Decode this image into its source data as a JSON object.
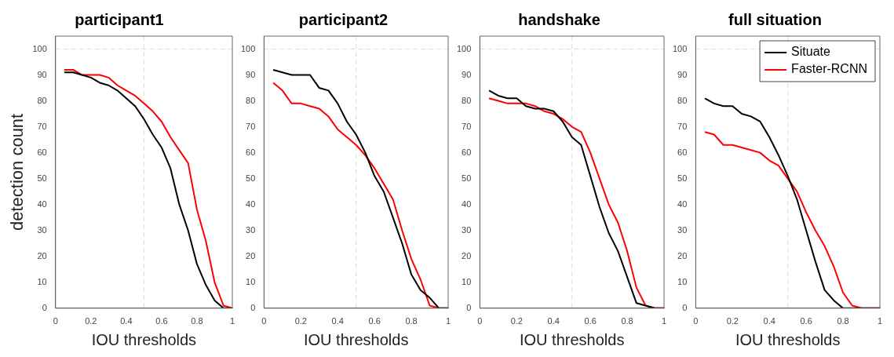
{
  "chart_data": [
    {
      "type": "line",
      "title": "participant1",
      "xlabel": "IOU thresholds",
      "ylabel": "detection count",
      "x": [
        0.05,
        0.1,
        0.15,
        0.2,
        0.25,
        0.3,
        0.35,
        0.4,
        0.45,
        0.5,
        0.55,
        0.6,
        0.65,
        0.7,
        0.75,
        0.8,
        0.85,
        0.9,
        0.95,
        1
      ],
      "xlim": [
        0,
        1
      ],
      "xticks": [
        0,
        0.2,
        0.4,
        0.6,
        0.8,
        1
      ],
      "ylim": [
        0,
        105
      ],
      "yticks": [
        0,
        10,
        20,
        30,
        40,
        50,
        60,
        70,
        80,
        90,
        100
      ],
      "grid": false,
      "legend": false,
      "marker": "none",
      "line_style": "solid",
      "ref_lines": [
        {
          "axis": "y",
          "value": 100,
          "color": "#dddddd",
          "line_style": "dashed"
        },
        {
          "axis": "x",
          "value": 0.5,
          "color": "#dddddd",
          "line_style": "dashed"
        }
      ],
      "series": [
        {
          "color": "#000000",
          "values": [
            91,
            91,
            90,
            89,
            87,
            86,
            84,
            81,
            78,
            73,
            67,
            62,
            54,
            40,
            30,
            17,
            9,
            3,
            0,
            0
          ]
        },
        {
          "color": "#ff0000",
          "values": [
            92,
            92,
            90,
            90,
            90,
            89,
            86,
            84,
            82,
            79,
            76,
            72,
            66,
            61,
            56,
            38,
            26,
            10,
            1,
            0
          ]
        }
      ]
    },
    {
      "type": "line",
      "title": "participant2",
      "xlabel": "IOU thresholds",
      "x": [
        0.05,
        0.1,
        0.15,
        0.2,
        0.25,
        0.3,
        0.35,
        0.4,
        0.45,
        0.5,
        0.55,
        0.6,
        0.65,
        0.7,
        0.75,
        0.8,
        0.85,
        0.9,
        0.95,
        1
      ],
      "xlim": [
        0,
        1
      ],
      "xticks": [
        0,
        0.2,
        0.4,
        0.6,
        0.8,
        1
      ],
      "ylim": [
        0,
        105
      ],
      "yticks": [
        0,
        10,
        20,
        30,
        40,
        50,
        60,
        70,
        80,
        90,
        100
      ],
      "grid": false,
      "legend": false,
      "marker": "none",
      "line_style": "solid",
      "ref_lines": [
        {
          "axis": "y",
          "value": 100,
          "color": "#dddddd",
          "line_style": "dashed"
        },
        {
          "axis": "x",
          "value": 0.5,
          "color": "#dddddd",
          "line_style": "dashed"
        }
      ],
      "series": [
        {
          "color": "#000000",
          "values": [
            92,
            91,
            90,
            90,
            90,
            85,
            84,
            79,
            72,
            67,
            60,
            51,
            45,
            35,
            25,
            13,
            7,
            4,
            0,
            0
          ]
        },
        {
          "color": "#ff0000",
          "values": [
            87,
            84,
            79,
            79,
            78,
            77,
            74,
            69,
            66,
            63,
            59,
            54,
            48,
            42,
            30,
            19,
            11,
            1,
            0,
            0
          ]
        }
      ]
    },
    {
      "type": "line",
      "title": "handshake",
      "xlabel": "IOU thresholds",
      "x": [
        0.05,
        0.1,
        0.15,
        0.2,
        0.25,
        0.3,
        0.35,
        0.4,
        0.45,
        0.5,
        0.55,
        0.6,
        0.65,
        0.7,
        0.75,
        0.8,
        0.85,
        0.9,
        0.95,
        1
      ],
      "xlim": [
        0,
        1
      ],
      "xticks": [
        0,
        0.2,
        0.4,
        0.6,
        0.8,
        1
      ],
      "ylim": [
        0,
        105
      ],
      "yticks": [
        0,
        10,
        20,
        30,
        40,
        50,
        60,
        70,
        80,
        90,
        100
      ],
      "grid": false,
      "legend": false,
      "marker": "none",
      "line_style": "solid",
      "ref_lines": [
        {
          "axis": "y",
          "value": 100,
          "color": "#dddddd",
          "line_style": "dashed"
        },
        {
          "axis": "x",
          "value": 0.5,
          "color": "#dddddd",
          "line_style": "dashed"
        }
      ],
      "series": [
        {
          "color": "#000000",
          "values": [
            84,
            82,
            81,
            81,
            78,
            77,
            77,
            76,
            72,
            66,
            63,
            51,
            39,
            29,
            22,
            12,
            2,
            1,
            0,
            0
          ]
        },
        {
          "color": "#ff0000",
          "values": [
            81,
            80,
            79,
            79,
            79,
            78,
            76,
            75,
            73,
            70,
            68,
            60,
            50,
            40,
            33,
            22,
            8,
            1,
            0,
            0
          ]
        }
      ]
    },
    {
      "type": "line",
      "title": "full situation",
      "xlabel": "IOU thresholds",
      "x": [
        0.05,
        0.1,
        0.15,
        0.2,
        0.25,
        0.3,
        0.35,
        0.4,
        0.45,
        0.5,
        0.55,
        0.6,
        0.65,
        0.7,
        0.75,
        0.8,
        0.85,
        0.9,
        0.95,
        1
      ],
      "xlim": [
        0,
        1
      ],
      "xticks": [
        0,
        0.2,
        0.4,
        0.6,
        0.8,
        1
      ],
      "ylim": [
        0,
        105
      ],
      "yticks": [
        0,
        10,
        20,
        30,
        40,
        50,
        60,
        70,
        80,
        90,
        100
      ],
      "grid": false,
      "legend": "top right",
      "marker": "none",
      "line_style": "solid",
      "ref_lines": [
        {
          "axis": "y",
          "value": 100,
          "color": "#dddddd",
          "line_style": "dashed"
        },
        {
          "axis": "x",
          "value": 0.5,
          "color": "#dddddd",
          "line_style": "dashed"
        }
      ],
      "series": [
        {
          "name": "Situate",
          "color": "#000000",
          "values": [
            81,
            79,
            78,
            78,
            75,
            74,
            72,
            66,
            59,
            51,
            42,
            30,
            18,
            7,
            3,
            0,
            0,
            0,
            0,
            0
          ]
        },
        {
          "name": "Faster-RCNN",
          "color": "#ff0000",
          "values": [
            68,
            67,
            63,
            63,
            62,
            61,
            60,
            57,
            55,
            50,
            45,
            37,
            30,
            24,
            16,
            6,
            1,
            0,
            0,
            0
          ]
        }
      ]
    }
  ]
}
